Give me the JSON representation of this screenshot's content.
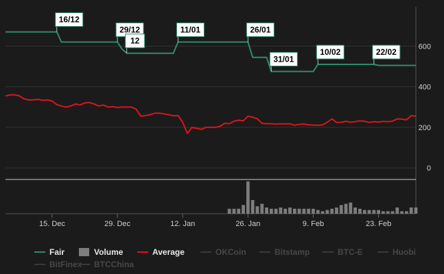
{
  "chart_data": {
    "type": "line",
    "x_axis": {
      "type": "date",
      "range": [
        "2013-12-05",
        "2014-03-03"
      ],
      "tick_labels": [
        {
          "date": "2013-12-15",
          "label": "15. Dec"
        },
        {
          "date": "2013-12-29",
          "label": "29. Dec"
        },
        {
          "date": "2014-01-12",
          "label": "12. Jan"
        },
        {
          "date": "2014-01-26",
          "label": "26. Jan"
        },
        {
          "date": "2014-02-09",
          "label": "9. Feb"
        },
        {
          "date": "2014-02-23",
          "label": "23. Feb"
        }
      ]
    },
    "y_axis": {
      "ylim": [
        -50,
        780
      ],
      "ticks": [
        {
          "value": 0,
          "label": "0"
        },
        {
          "value": 200,
          "label": "200"
        },
        {
          "value": 400,
          "label": "400"
        },
        {
          "value": 600,
          "label": "600"
        }
      ],
      "grid": true
    },
    "volume_axis": {
      "ylim": [
        0,
        27
      ]
    },
    "colors": {
      "background": "#1c1b1b",
      "fair": "#2e8b70",
      "average": "#d8161b",
      "volume": "#7d7d7d",
      "grid": "#333333",
      "divider": "#cccccc"
    },
    "series": [
      {
        "name": "Fair",
        "kind": "step",
        "points": [
          [
            "2013-12-05",
            670
          ],
          [
            "2013-12-16",
            670
          ],
          [
            "2013-12-17",
            620
          ],
          [
            "2013-12-29",
            620
          ],
          [
            "2013-12-30",
            585
          ],
          [
            "2013-12-31",
            565
          ],
          [
            "2014-01-10",
            565
          ],
          [
            "2014-01-11",
            620
          ],
          [
            "2014-01-26",
            620
          ],
          [
            "2014-01-27",
            545
          ],
          [
            "2014-01-30",
            545
          ],
          [
            "2014-01-31",
            475
          ],
          [
            "2014-02-09",
            475
          ],
          [
            "2014-02-10",
            510
          ],
          [
            "2014-02-22",
            510
          ],
          [
            "2014-02-23",
            505
          ],
          [
            "2014-03-03",
            505
          ]
        ]
      },
      {
        "name": "Average",
        "kind": "line",
        "points": [
          [
            "2013-12-05",
            355
          ],
          [
            "2013-12-06",
            360
          ],
          [
            "2013-12-07",
            360
          ],
          [
            "2013-12-08",
            355
          ],
          [
            "2013-12-09",
            340
          ],
          [
            "2013-12-10",
            335
          ],
          [
            "2013-12-11",
            335
          ],
          [
            "2013-12-12",
            338
          ],
          [
            "2013-12-13",
            333
          ],
          [
            "2013-12-14",
            335
          ],
          [
            "2013-12-15",
            330
          ],
          [
            "2013-12-16",
            312
          ],
          [
            "2013-12-17",
            305
          ],
          [
            "2013-12-18",
            300
          ],
          [
            "2013-12-19",
            305
          ],
          [
            "2013-12-20",
            315
          ],
          [
            "2013-12-21",
            310
          ],
          [
            "2013-12-22",
            320
          ],
          [
            "2013-12-23",
            322
          ],
          [
            "2013-12-24",
            315
          ],
          [
            "2013-12-25",
            305
          ],
          [
            "2013-12-26",
            310
          ],
          [
            "2013-12-27",
            300
          ],
          [
            "2013-12-28",
            302
          ],
          [
            "2013-12-29",
            298
          ],
          [
            "2013-12-30",
            300
          ],
          [
            "2013-12-31",
            300
          ],
          [
            "2014-01-01",
            300
          ],
          [
            "2014-01-02",
            290
          ],
          [
            "2014-01-03",
            255
          ],
          [
            "2014-01-04",
            258
          ],
          [
            "2014-01-05",
            262
          ],
          [
            "2014-01-06",
            270
          ],
          [
            "2014-01-07",
            270
          ],
          [
            "2014-01-08",
            266
          ],
          [
            "2014-01-09",
            262
          ],
          [
            "2014-01-10",
            257
          ],
          [
            "2014-01-11",
            258
          ],
          [
            "2014-01-12",
            225
          ],
          [
            "2014-01-13",
            170
          ],
          [
            "2014-01-14",
            200
          ],
          [
            "2014-01-15",
            195
          ],
          [
            "2014-01-16",
            190
          ],
          [
            "2014-01-17",
            200
          ],
          [
            "2014-01-18",
            200
          ],
          [
            "2014-01-19",
            200
          ],
          [
            "2014-01-20",
            205
          ],
          [
            "2014-01-21",
            220
          ],
          [
            "2014-01-22",
            218
          ],
          [
            "2014-01-23",
            230
          ],
          [
            "2014-01-24",
            235
          ],
          [
            "2014-01-25",
            232
          ],
          [
            "2014-01-26",
            255
          ],
          [
            "2014-01-27",
            250
          ],
          [
            "2014-01-28",
            242
          ],
          [
            "2014-01-29",
            220
          ],
          [
            "2014-01-30",
            218
          ],
          [
            "2014-01-31",
            218
          ],
          [
            "2014-02-01",
            216
          ],
          [
            "2014-02-02",
            218
          ],
          [
            "2014-02-03",
            217
          ],
          [
            "2014-02-04",
            218
          ],
          [
            "2014-02-05",
            210
          ],
          [
            "2014-02-06",
            215
          ],
          [
            "2014-02-07",
            217
          ],
          [
            "2014-02-08",
            212
          ],
          [
            "2014-02-09",
            211
          ],
          [
            "2014-02-10",
            210
          ],
          [
            "2014-02-11",
            212
          ],
          [
            "2014-02-12",
            225
          ],
          [
            "2014-02-13",
            242
          ],
          [
            "2014-02-14",
            224
          ],
          [
            "2014-02-15",
            225
          ],
          [
            "2014-02-16",
            230
          ],
          [
            "2014-02-17",
            225
          ],
          [
            "2014-02-18",
            228
          ],
          [
            "2014-02-19",
            232
          ],
          [
            "2014-02-20",
            230
          ],
          [
            "2014-02-21",
            224
          ],
          [
            "2014-02-22",
            228
          ],
          [
            "2014-02-23",
            226
          ],
          [
            "2014-02-24",
            229
          ],
          [
            "2014-02-25",
            228
          ],
          [
            "2014-02-26",
            230
          ],
          [
            "2014-02-27",
            242
          ],
          [
            "2014-02-28",
            240
          ],
          [
            "2014-03-01",
            237
          ],
          [
            "2014-03-02",
            258
          ],
          [
            "2014-03-03",
            255
          ]
        ]
      },
      {
        "name": "Volume",
        "kind": "column",
        "points": [
          [
            "2014-01-22",
            4
          ],
          [
            "2014-01-23",
            4
          ],
          [
            "2014-01-24",
            4
          ],
          [
            "2014-01-25",
            7
          ],
          [
            "2014-01-26",
            26
          ],
          [
            "2014-01-27",
            11
          ],
          [
            "2014-01-28",
            6
          ],
          [
            "2014-01-29",
            8
          ],
          [
            "2014-01-30",
            5
          ],
          [
            "2014-01-31",
            4
          ],
          [
            "2014-02-01",
            4
          ],
          [
            "2014-02-02",
            5
          ],
          [
            "2014-02-03",
            4
          ],
          [
            "2014-02-04",
            5
          ],
          [
            "2014-02-05",
            4
          ],
          [
            "2014-02-06",
            4
          ],
          [
            "2014-02-07",
            4
          ],
          [
            "2014-02-08",
            4
          ],
          [
            "2014-02-09",
            4
          ],
          [
            "2014-02-10",
            3
          ],
          [
            "2014-02-11",
            2
          ],
          [
            "2014-02-12",
            3
          ],
          [
            "2014-02-13",
            4
          ],
          [
            "2014-02-14",
            5
          ],
          [
            "2014-02-15",
            7
          ],
          [
            "2014-02-16",
            8
          ],
          [
            "2014-02-17",
            9
          ],
          [
            "2014-02-18",
            5
          ],
          [
            "2014-02-19",
            4
          ],
          [
            "2014-02-20",
            3
          ],
          [
            "2014-02-21",
            3
          ],
          [
            "2014-02-22",
            3
          ],
          [
            "2014-02-23",
            3
          ],
          [
            "2014-02-24",
            2
          ],
          [
            "2014-02-25",
            2
          ],
          [
            "2014-02-26",
            2
          ],
          [
            "2014-02-27",
            5
          ],
          [
            "2014-02-28",
            2
          ],
          [
            "2014-03-01",
            2
          ],
          [
            "2014-03-02",
            5
          ],
          [
            "2014-03-03",
            5
          ]
        ]
      }
    ],
    "flags": [
      {
        "label": "16/12",
        "date": "2013-12-16"
      },
      {
        "label": "29/12",
        "date": "2013-12-29"
      },
      {
        "label": "12",
        "date": "2013-12-31",
        "note": "partially hidden behind 29/12"
      },
      {
        "label": "11/01",
        "date": "2014-01-11"
      },
      {
        "label": "26/01",
        "date": "2014-01-26"
      },
      {
        "label": "31/01",
        "date": "2014-01-31"
      },
      {
        "label": "10/02",
        "date": "2014-02-10"
      },
      {
        "label": "22/02",
        "date": "2014-02-22"
      }
    ],
    "legend": {
      "placement": "bottom-left",
      "items": [
        {
          "label": "Fair",
          "symbol": "line",
          "color": "#2e8b70",
          "active": true
        },
        {
          "label": "Volume",
          "symbol": "box",
          "color": "#7d7d7d",
          "active": true
        },
        {
          "label": "Average",
          "symbol": "line",
          "color": "#d8161b",
          "active": true
        },
        {
          "label": "OKCoin",
          "symbol": "line",
          "color": "#3a3a3a",
          "active": false
        },
        {
          "label": "Bitstamp",
          "symbol": "line",
          "color": "#3a3a3a",
          "active": false
        },
        {
          "label": "BTC-E",
          "symbol": "line",
          "color": "#3a3a3a",
          "active": false
        },
        {
          "label": "Huobi",
          "symbol": "line",
          "color": "#3a3a3a",
          "active": false
        },
        {
          "label": "BitFinex",
          "symbol": "line",
          "color": "#3a3a3a",
          "active": false
        },
        {
          "label": "BTCChina",
          "symbol": "line",
          "color": "#3a3a3a",
          "active": false
        }
      ]
    }
  }
}
